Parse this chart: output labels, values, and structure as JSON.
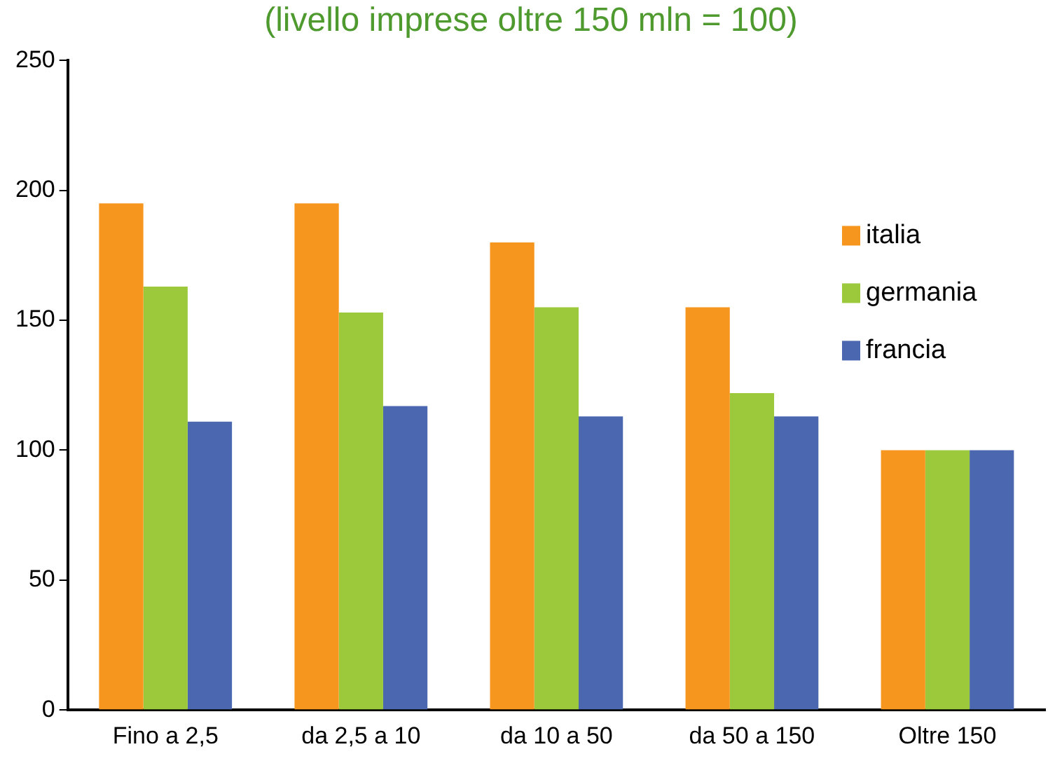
{
  "chart_data": {
    "type": "bar",
    "title": "(livello imprese oltre 150 mln = 100)",
    "categories": [
      "Fino a 2,5",
      "da 2,5 a 10",
      "da 10 a 50",
      "da 50 a 150",
      "Oltre 150"
    ],
    "series": [
      {
        "name": "italia",
        "color": "#f7961e",
        "values": [
          195,
          195,
          180,
          155,
          100
        ]
      },
      {
        "name": "germania",
        "color": "#9bc93b",
        "values": [
          163,
          153,
          155,
          122,
          100
        ]
      },
      {
        "name": "francia",
        "color": "#4a67b0",
        "values": [
          111,
          117,
          113,
          113,
          100
        ]
      }
    ],
    "ylim": [
      0,
      250
    ],
    "yticks": [
      0,
      50,
      100,
      150,
      200,
      250
    ],
    "grid": false,
    "legend": "top right"
  }
}
